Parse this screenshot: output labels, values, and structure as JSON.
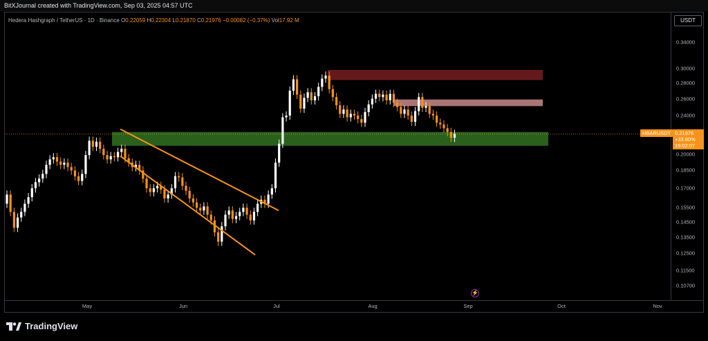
{
  "header": {
    "credit": "BitXJournal created with TradingView.com, Sep 03, 2025 04:57 UTC"
  },
  "legend": {
    "symbol": "Hedera Hashgraph / TetherUS · 1D · Binance",
    "open_label": "O",
    "open": "0.22059",
    "high_label": "H",
    "high": "0.22304",
    "low_label": "L",
    "low": "0.21870",
    "close_label": "C",
    "close": "0.21976",
    "change": "−0.00082 (−0.37%)",
    "vol_label": "Vol",
    "vol": "17.92 M"
  },
  "currency_button": "USDT",
  "price_axis": [
    "0.34000",
    "0.30000",
    "0.28000",
    "0.26000",
    "0.24000",
    "0.20000",
    "0.18500",
    "0.17000",
    "0.15500",
    "0.14500",
    "0.13500",
    "0.12500",
    "0.11500",
    "0.10700"
  ],
  "time_axis": [
    "May",
    "Jun",
    "Jul",
    "Aug",
    "Sep",
    "Oct",
    "Nov"
  ],
  "symbol_badge": "HBARUSDT",
  "price_label": {
    "price": "0.21976",
    "change": "+33.80%",
    "countdown": "19:02:07"
  },
  "footer": {
    "brand": "TradingView"
  },
  "colors": {
    "up": "#ffffff",
    "down": "#f7931a",
    "support_zone": "#2e6b1f",
    "resistance_zone": "#6b1a1f",
    "mid_zone": "#c98a8a",
    "channel": "#f7931a"
  },
  "chart_data": {
    "type": "candlestick",
    "symbol": "HBARUSDT",
    "timeframe": "1D",
    "log_scale": true,
    "y_ticks": [
      0.34,
      0.3,
      0.28,
      0.26,
      0.24,
      0.2,
      0.185,
      0.17,
      0.155,
      0.145,
      0.135,
      0.125,
      0.115,
      0.107
    ],
    "x_ticks": [
      "May",
      "Jun",
      "Jul",
      "Aug",
      "Sep",
      "Oct",
      "Nov"
    ],
    "last_close": 0.21976,
    "zones": [
      {
        "name": "support",
        "low": 0.208,
        "high": 0.222
      },
      {
        "name": "resistance",
        "low": 0.284,
        "high": 0.298
      },
      {
        "name": "mid-resistance",
        "low": 0.251,
        "high": 0.259
      }
    ],
    "channel": {
      "upper": [
        {
          "date": "2025-05-14",
          "price": 0.225
        },
        {
          "date": "2025-06-27",
          "price": 0.153
        }
      ],
      "lower": [
        {
          "date": "2025-05-14",
          "price": 0.198
        },
        {
          "date": "2025-06-20",
          "price": 0.124
        }
      ]
    },
    "candles_close": [
      0.165,
      0.152,
      0.141,
      0.148,
      0.152,
      0.158,
      0.163,
      0.17,
      0.175,
      0.178,
      0.182,
      0.19,
      0.195,
      0.197,
      0.193,
      0.19,
      0.192,
      0.188,
      0.185,
      0.18,
      0.176,
      0.182,
      0.199,
      0.213,
      0.207,
      0.212,
      0.205,
      0.199,
      0.195,
      0.198,
      0.197,
      0.202,
      0.205,
      0.196,
      0.192,
      0.188,
      0.19,
      0.185,
      0.178,
      0.17,
      0.167,
      0.17,
      0.172,
      0.169,
      0.162,
      0.165,
      0.17,
      0.18,
      0.179,
      0.172,
      0.168,
      0.162,
      0.159,
      0.155,
      0.153,
      0.156,
      0.15,
      0.146,
      0.138,
      0.132,
      0.142,
      0.15,
      0.153,
      0.147,
      0.149,
      0.152,
      0.155,
      0.15,
      0.146,
      0.152,
      0.158,
      0.161,
      0.158,
      0.165,
      0.17,
      0.192,
      0.21,
      0.238,
      0.24,
      0.27,
      0.285,
      0.265,
      0.248,
      0.261,
      0.268,
      0.258,
      0.263,
      0.275,
      0.286,
      0.29,
      0.272,
      0.262,
      0.252,
      0.242,
      0.247,
      0.238,
      0.242,
      0.24,
      0.236,
      0.232,
      0.244,
      0.253,
      0.26,
      0.266,
      0.262,
      0.265,
      0.258,
      0.266,
      0.255,
      0.25,
      0.242,
      0.247,
      0.24,
      0.233,
      0.245,
      0.262,
      0.249,
      0.251,
      0.242,
      0.24,
      0.232,
      0.23,
      0.226,
      0.222,
      0.216,
      0.22
    ]
  }
}
